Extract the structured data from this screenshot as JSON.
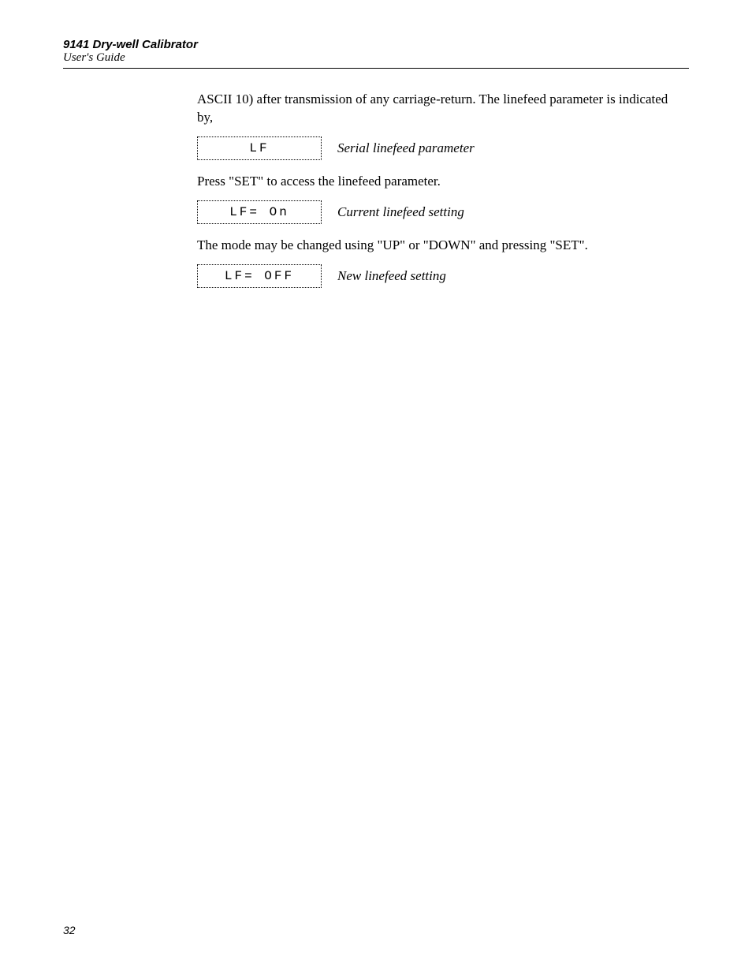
{
  "header": {
    "title": "9141 Dry-well Calibrator",
    "subtitle": "User's Guide"
  },
  "content": {
    "para1": "ASCII 10) after transmission of any carriage-return. The linefeed parameter is indicated by,",
    "display1": {
      "lcd": "LF",
      "caption": "Serial linefeed parameter"
    },
    "para2": "Press \"SET\" to access the linefeed parameter.",
    "display2": {
      "lcd": "LF= On",
      "caption": "Current linefeed setting"
    },
    "para3": "The mode may be changed using \"UP\" or \"DOWN\" and pressing \"SET\".",
    "display3": {
      "lcd": "LF= OFF",
      "caption": "New linefeed setting"
    }
  },
  "pageNumber": "32"
}
